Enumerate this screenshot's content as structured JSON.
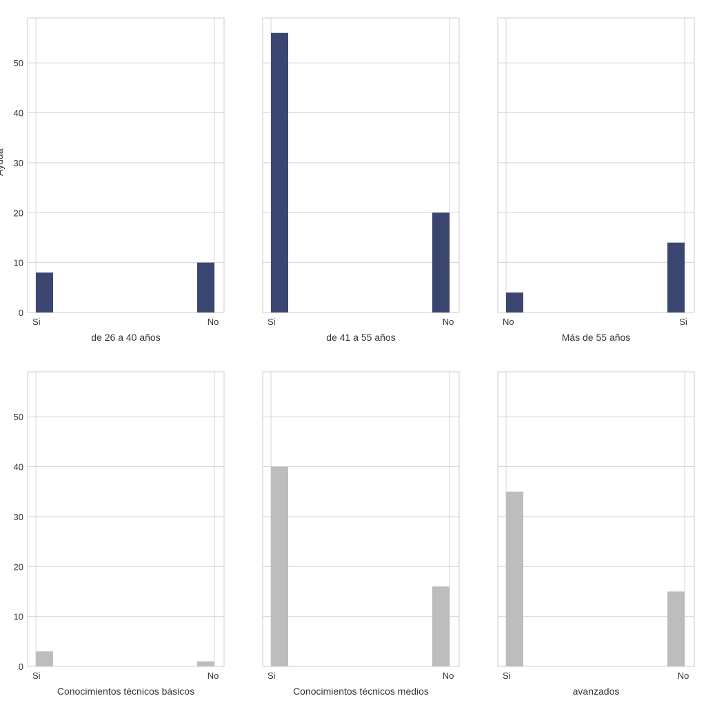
{
  "chart_data": [
    {
      "type": "bar",
      "xlabel": "de 26 a 40 años",
      "ylabel": "Ayuda",
      "categories": [
        "Si",
        "No"
      ],
      "values": [
        8,
        10
      ],
      "color": "#3b4670",
      "ylim": [
        0,
        59
      ],
      "yticks": [
        0,
        10,
        20,
        30,
        40,
        50
      ],
      "grid": true
    },
    {
      "type": "bar",
      "xlabel": "de 41 a 55 años",
      "categories": [
        "Si",
        "No"
      ],
      "values": [
        56,
        20
      ],
      "color": "#3b4670",
      "ylim": [
        0,
        59
      ],
      "yticks": [
        0,
        10,
        20,
        30,
        40,
        50
      ],
      "grid": true
    },
    {
      "type": "bar",
      "xlabel": "Más de 55 años",
      "categories": [
        "No",
        "Si"
      ],
      "values": [
        4,
        14
      ],
      "color": "#3b4670",
      "ylim": [
        0,
        59
      ],
      "yticks": [
        0,
        10,
        20,
        30,
        40,
        50
      ],
      "grid": true
    },
    {
      "type": "bar",
      "xlabel": "Conocimientos técnicos básicos",
      "categories": [
        "Si",
        "No"
      ],
      "values": [
        3,
        1
      ],
      "color": "#bdbdbd",
      "ylim": [
        0,
        59
      ],
      "yticks": [
        0,
        10,
        20,
        30,
        40,
        50
      ],
      "grid": true
    },
    {
      "type": "bar",
      "xlabel": "Conocimientos técnicos medios",
      "categories": [
        "Si",
        "No"
      ],
      "values": [
        40,
        16
      ],
      "color": "#bdbdbd",
      "ylim": [
        0,
        59
      ],
      "yticks": [
        0,
        10,
        20,
        30,
        40,
        50
      ],
      "grid": true
    },
    {
      "type": "bar",
      "xlabel": "avanzados",
      "categories": [
        "Si",
        "No"
      ],
      "values": [
        35,
        15
      ],
      "color": "#bdbdbd",
      "ylim": [
        0,
        59
      ],
      "yticks": [
        0,
        10,
        20,
        30,
        40,
        50
      ],
      "grid": true
    }
  ]
}
